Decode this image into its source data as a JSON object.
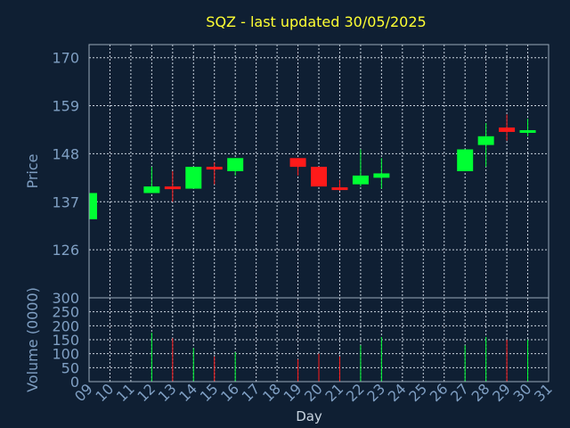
{
  "chart_data": {
    "type": "candlestick",
    "title": "SQZ - last updated 30/05/2025",
    "xlabel": "Day",
    "price_panel": {
      "ylabel": "Price",
      "ylim": [
        115,
        173
      ],
      "yticks": [
        126,
        137,
        148,
        159,
        170
      ],
      "grid": true
    },
    "volume_panel": {
      "ylabel": "Volume (0000)",
      "ylim": [
        0,
        300
      ],
      "yticks": [
        0,
        50,
        100,
        150,
        200,
        250,
        300
      ],
      "grid": true
    },
    "x_ticks": [
      "09",
      "10",
      "11",
      "12",
      "13",
      "14",
      "15",
      "16",
      "17",
      "18",
      "19",
      "20",
      "21",
      "22",
      "23",
      "24",
      "25",
      "26",
      "27",
      "28",
      "29",
      "30",
      "31"
    ],
    "candles": [
      {
        "day": "09",
        "open": 133,
        "close": 139,
        "high": 139,
        "low": 133,
        "volume": 0
      },
      {
        "day": "12",
        "open": 139,
        "close": 140.5,
        "high": 145,
        "low": 139,
        "volume": 175
      },
      {
        "day": "13",
        "open": 140.5,
        "close": 140,
        "high": 144,
        "low": 137,
        "volume": 155
      },
      {
        "day": "14",
        "open": 140,
        "close": 145,
        "high": 145,
        "low": 140,
        "volume": 120
      },
      {
        "day": "15",
        "open": 145,
        "close": 144.5,
        "high": 146,
        "low": 141,
        "volume": 90
      },
      {
        "day": "16",
        "open": 144,
        "close": 147,
        "high": 147,
        "low": 143,
        "volume": 105
      },
      {
        "day": "19",
        "open": 147,
        "close": 145,
        "high": 147,
        "low": 143,
        "volume": 80
      },
      {
        "day": "20",
        "open": 145,
        "close": 140.5,
        "high": 145,
        "low": 140.5,
        "volume": 100
      },
      {
        "day": "21",
        "open": 140.3,
        "close": 140,
        "high": 142,
        "low": 139.5,
        "volume": 90
      },
      {
        "day": "22",
        "open": 141,
        "close": 143,
        "high": 149,
        "low": 140.5,
        "volume": 130
      },
      {
        "day": "23",
        "open": 142.5,
        "close": 143.5,
        "high": 147,
        "low": 140,
        "volume": 160
      },
      {
        "day": "27",
        "open": 144,
        "close": 149,
        "high": 149,
        "low": 144,
        "volume": 130
      },
      {
        "day": "28",
        "open": 150,
        "close": 152,
        "high": 155,
        "low": 145,
        "volume": 160
      },
      {
        "day": "29",
        "open": 154,
        "close": 153,
        "high": 157,
        "low": 151,
        "volume": 150
      },
      {
        "day": "30",
        "open": 153,
        "close": 153.4,
        "high": 156,
        "low": 152,
        "volume": 150
      }
    ],
    "colors": {
      "background": "#0f1f33",
      "up": "#00ff33",
      "down": "#ff1a1a",
      "title": "#ffff33",
      "axis_text": "#7f9fc3",
      "frame": "#9aa8b8",
      "grid": "#c9d3de"
    }
  }
}
